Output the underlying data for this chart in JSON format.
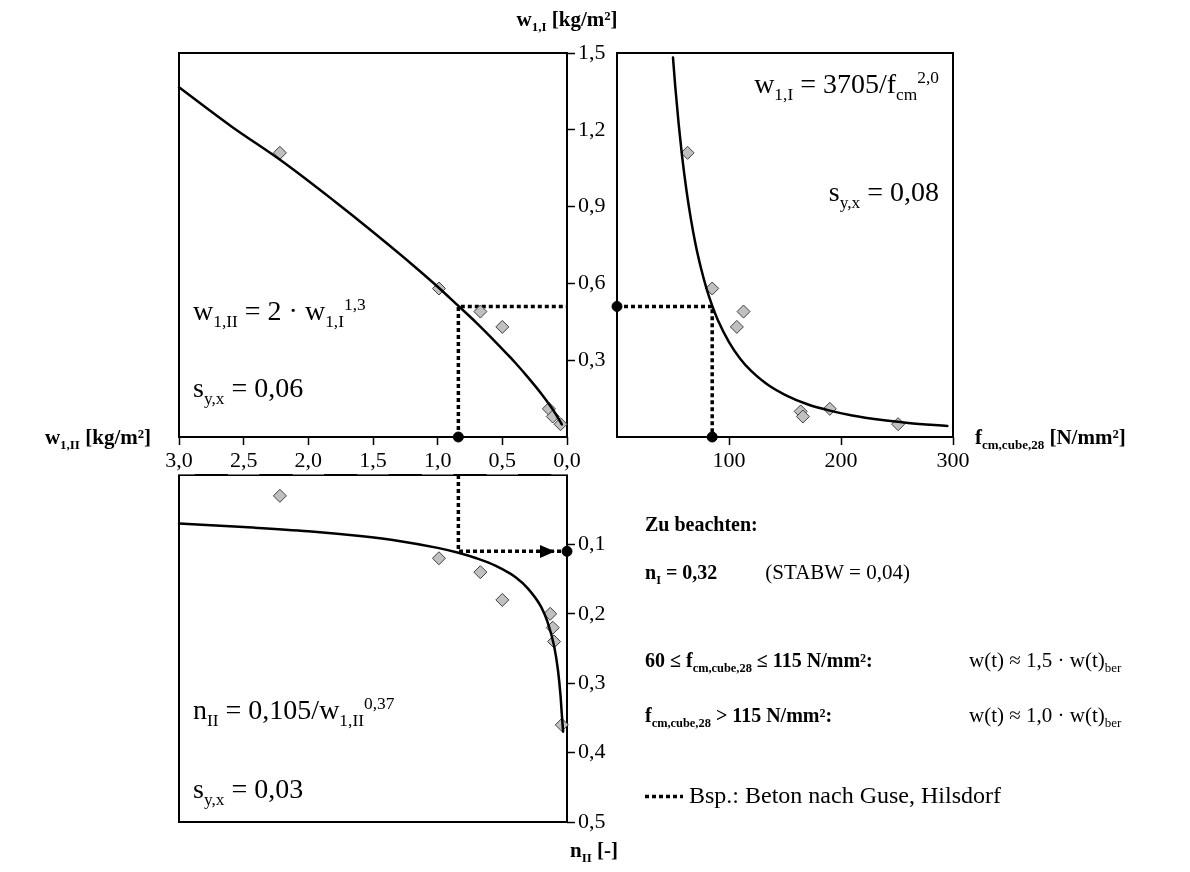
{
  "chart_data": [
    {
      "type": "scatter",
      "xlabel": "w$_{1,II}$ [kg/m²]",
      "ylabel": "w$_{1,I}$ [kg/m²]",
      "xlim": [
        3,
        0
      ],
      "ylim": [
        0,
        1.5
      ],
      "xticks": [
        {
          "value": 3,
          "label": "3,0"
        },
        {
          "value": 2.5,
          "label": "2,5"
        },
        {
          "value": 2,
          "label": "2,0"
        },
        {
          "value": 1.5,
          "label": "1,5"
        },
        {
          "value": 1,
          "label": "1,0"
        },
        {
          "value": 0.5,
          "label": "0,5"
        },
        {
          "value": 0,
          "label": "0,0"
        }
      ],
      "yticks": [
        {
          "value": 0.3,
          "label": "0,3"
        },
        {
          "value": 0.6,
          "label": "0,6"
        },
        {
          "value": 0.9,
          "label": "0,9"
        },
        {
          "value": 1.2,
          "label": "1,2"
        },
        {
          "value": 1.5,
          "label": "1,5"
        }
      ],
      "series": [
        {
          "type": "line",
          "color": "#000000",
          "marker": "none",
          "x": [
            3,
            2.6,
            2.2,
            1.8,
            1.5,
            1.2,
            1,
            0.84,
            0.7,
            0.55,
            0.4,
            0.3,
            0.2,
            0.13,
            0.08,
            0.04
          ],
          "values": [
            1.366,
            1.215,
            1.076,
            0.922,
            0.801,
            0.675,
            0.587,
            0.512,
            0.446,
            0.37,
            0.29,
            0.232,
            0.17,
            0.122,
            0.084,
            0.049
          ]
        },
        {
          "type": "scatter",
          "color": "#c0c0c0",
          "marker": "diamond",
          "x": [
            2.22,
            0.99,
            0.67,
            0.5,
            0.14,
            0.11,
            0.05
          ],
          "values": [
            1.11,
            0.58,
            0.49,
            0.43,
            0.11,
            0.08,
            0.05
          ]
        },
        {
          "type": "line",
          "color": "#000000",
          "marker": "none",
          "line_style": "dotted",
          "x": [
            0.84,
            0.84,
            0
          ],
          "values": [
            0,
            0.51,
            0.51
          ]
        },
        {
          "type": "scatter",
          "color": "#000000",
          "marker": "circle",
          "x": [
            0.84
          ],
          "values": [
            0
          ]
        }
      ],
      "annotations": [
        "w$_{1,II}$ = 2 · w$_{1,I}$$^{1,3}$",
        "s$_{y,x}$ = 0,06"
      ]
    },
    {
      "type": "scatter",
      "xlabel": "f$_{cm,cube,28}$ [N/mm²]",
      "xlim": [
        0,
        300
      ],
      "ylim": [
        0,
        1.5
      ],
      "xticks": [
        100,
        200,
        300
      ],
      "tick_labels": "x",
      "series": [
        {
          "type": "line",
          "color": "#000000",
          "marker": "none",
          "x": [
            50,
            52,
            55,
            58,
            62,
            66,
            70,
            75,
            80,
            85,
            90,
            100,
            110,
            120,
            135,
            150,
            170,
            190,
            210,
            235,
            260,
            295
          ],
          "values": [
            1.482,
            1.37,
            1.225,
            1.101,
            0.964,
            0.851,
            0.756,
            0.659,
            0.579,
            0.513,
            0.457,
            0.371,
            0.306,
            0.257,
            0.203,
            0.165,
            0.128,
            0.103,
            0.084,
            0.067,
            0.055,
            0.043
          ]
        },
        {
          "type": "scatter",
          "color": "#c0c0c0",
          "marker": "diamond",
          "x": [
            63,
            85,
            113,
            107,
            164,
            166,
            190,
            251
          ],
          "values": [
            1.11,
            0.58,
            0.49,
            0.43,
            0.1,
            0.08,
            0.11,
            0.05
          ]
        },
        {
          "type": "line",
          "color": "#000000",
          "marker": "none",
          "line_style": "dotted",
          "x": [
            0,
            85,
            85
          ],
          "values": [
            0.51,
            0.51,
            0
          ]
        },
        {
          "type": "scatter",
          "color": "#000000",
          "marker": "circle",
          "x": [
            0,
            85
          ],
          "values": [
            0.51,
            0
          ]
        }
      ],
      "annotations": [
        "w$_{1,I}$ = 3705/f$_{cm}$$^{2,0}$",
        "s$_{y,x}$ = 0,08"
      ]
    },
    {
      "type": "scatter",
      "ylabel": "n$_{II}$ [-]",
      "xlim": [
        3,
        0
      ],
      "ylim": [
        0.5,
        0
      ],
      "yticks": [
        {
          "value": 0.1,
          "label": "0,1"
        },
        {
          "value": 0.2,
          "label": "0,2"
        },
        {
          "value": 0.3,
          "label": "0,3"
        },
        {
          "value": 0.4,
          "label": "0,4"
        },
        {
          "value": 0.5,
          "label": "0,5"
        }
      ],
      "tick_labels": "y",
      "legend": "bottom right",
      "series": [
        {
          "type": "line",
          "color": "#000000",
          "marker": "none",
          "x": [
            3,
            2.5,
            2,
            1.6,
            1.3,
            1,
            0.84,
            0.7,
            0.55,
            0.4,
            0.3,
            0.2,
            0.15,
            0.1,
            0.07,
            0.05,
            0.04,
            0.03
          ],
          "values": [
            0.07,
            0.075,
            0.081,
            0.088,
            0.095,
            0.105,
            0.112,
            0.12,
            0.131,
            0.147,
            0.164,
            0.19,
            0.212,
            0.246,
            0.281,
            0.318,
            0.345,
            0.37
          ]
        },
        {
          "type": "scatter",
          "color": "#c0c0c0",
          "marker": "diamond",
          "x": [
            2.22,
            0.99,
            0.67,
            0.5,
            0.13,
            0.11,
            0.1,
            0.04
          ],
          "values": [
            0.03,
            0.12,
            0.14,
            0.18,
            0.2,
            0.22,
            0.24,
            0.36
          ]
        },
        {
          "type": "line",
          "name": "Bsp.: Beton nach Guse, Hilsdorf",
          "color": "#000000",
          "marker": "none",
          "line_style": "dotted",
          "x": [
            0.84,
            0.84,
            0
          ],
          "values": [
            0,
            0.11,
            0.11
          ]
        },
        {
          "type": "scatter",
          "color": "#000000",
          "marker": "circle",
          "x": [
            0
          ],
          "values": [
            0.11
          ]
        }
      ],
      "annotations": [
        "n$_{II}$ = 0,105/w$_{1,II}$$^{0,37}$",
        "s$_{y,x}$ = 0,03"
      ]
    },
    {
      "type": "other",
      "title": "Zu beachten:",
      "annotations": [
        "n$_{I}$ = 0,32",
        "(STABW = 0,04)",
        "60 ≤ f$_{cm,cube,28}$ ≤ 115 N/mm²:",
        "w(t) ≈ 1,5 · w(t)$_{ber}$",
        "f$_{cm,cube,28}$ > 115 N/mm²:",
        "w(t) ≈ 1,0 · w(t)$_{ber}$"
      ]
    }
  ]
}
